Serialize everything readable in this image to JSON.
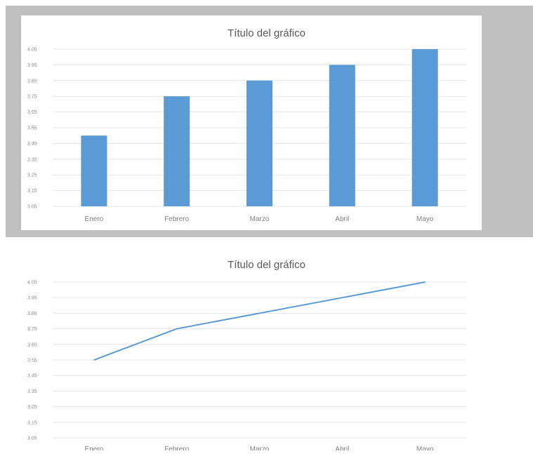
{
  "chart_data": [
    {
      "type": "bar",
      "title": "Título del gráfico",
      "categories": [
        "Enero",
        "Febrero",
        "Marzo",
        "Abril",
        "Mayo"
      ],
      "values": [
        3.5,
        3.75,
        3.85,
        3.95,
        4.05
      ],
      "yticks": [
        "3.05",
        "3.15",
        "3.25",
        "3.35",
        "3.45",
        "3.55",
        "3.65",
        "3.75",
        "3.85",
        "3.95",
        "4.05"
      ],
      "ylim": [
        3.05,
        4.05
      ],
      "grid": true,
      "color": "#5b9bd5"
    },
    {
      "type": "line",
      "title": "Título del gráfico",
      "categories": [
        "Enero",
        "Febrero",
        "Marzo",
        "Abril",
        "Mayo"
      ],
      "values": [
        3.55,
        3.75,
        3.85,
        3.95,
        4.05
      ],
      "yticks": [
        "3.05",
        "3.15",
        "3.25",
        "3.35",
        "3.45",
        "3.55",
        "3.65",
        "3.75",
        "3.85",
        "3.95",
        "4.05"
      ],
      "ylim": [
        3.05,
        4.05
      ],
      "grid": true,
      "color": "#5b9bd5"
    }
  ]
}
